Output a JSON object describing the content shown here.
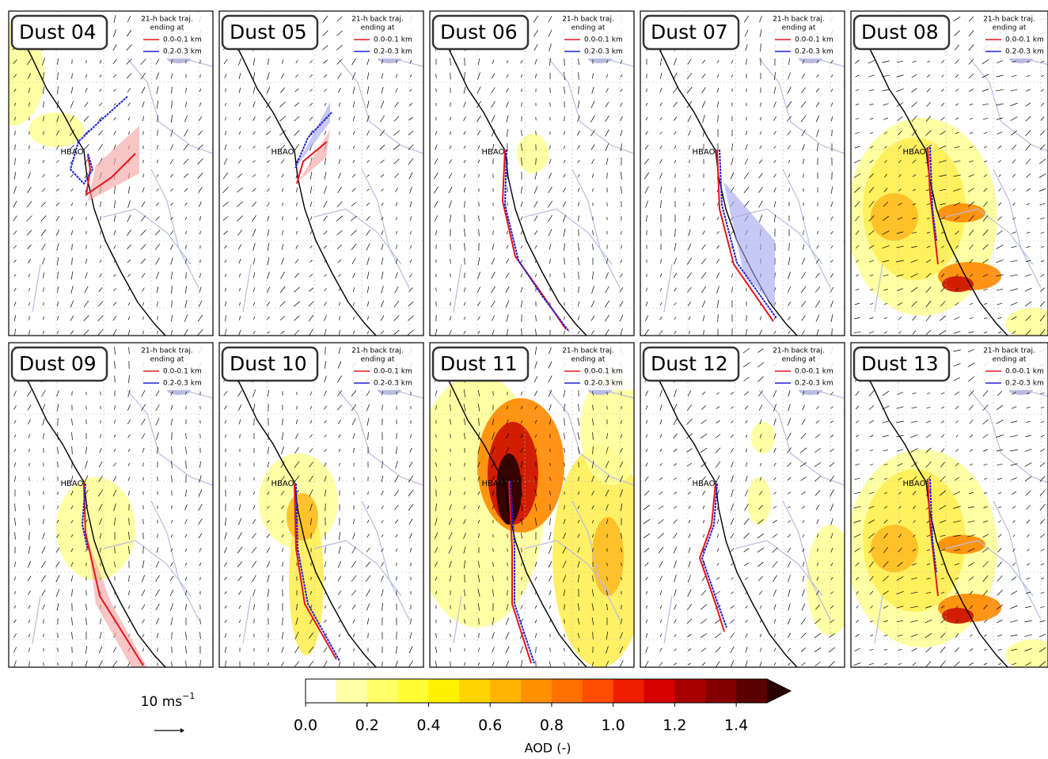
{
  "panels": [
    {
      "title": "Dust 04"
    },
    {
      "title": "Dust 05"
    },
    {
      "title": "Dust 06"
    },
    {
      "title": "Dust 07"
    },
    {
      "title": "Dust 08"
    },
    {
      "title": "Dust 09"
    },
    {
      "title": "Dust 10"
    },
    {
      "title": "Dust 11"
    },
    {
      "title": "Dust 12"
    },
    {
      "title": "Dust 13"
    }
  ],
  "panel_common": {
    "station": "HBAO",
    "legend_title": [
      "21-h back traj.",
      "ending at"
    ],
    "legend_entries": [
      "0.0-0.1 km",
      "0.2-0.3 km"
    ],
    "legend_colors": [
      "#e8141a",
      "#1e22d6"
    ]
  },
  "wind_reference": {
    "label": "10 ms",
    "exponent": "−1"
  },
  "colorbar": {
    "label": "AOD (-)",
    "bounds": [
      0,
      0.1,
      0.2,
      0.3,
      0.4,
      0.5,
      0.6,
      0.7,
      0.8,
      0.9,
      1.0,
      1.1,
      1.2,
      1.3,
      1.4,
      1.5
    ],
    "colors": [
      "#ffffff",
      "#ffffa6",
      "#ffff66",
      "#ffff33",
      "#fff200",
      "#ffd500",
      "#ffb300",
      "#ff9000",
      "#ff7000",
      "#ff4d00",
      "#f01e00",
      "#d40000",
      "#a80000",
      "#820000",
      "#5a0000"
    ],
    "extend_color": "#2a0000",
    "ticks": [
      {
        "value": 0,
        "label": "0.0"
      },
      {
        "value": 0.2,
        "label": "0.2"
      },
      {
        "value": 0.4,
        "label": "0.4"
      },
      {
        "value": 0.6,
        "label": "0.6"
      },
      {
        "value": 0.8,
        "label": "0.8"
      },
      {
        "value": 1.0,
        "label": "1.0"
      },
      {
        "value": 1.2,
        "label": "1.2"
      },
      {
        "value": 1.4,
        "label": "1.4"
      }
    ]
  }
}
